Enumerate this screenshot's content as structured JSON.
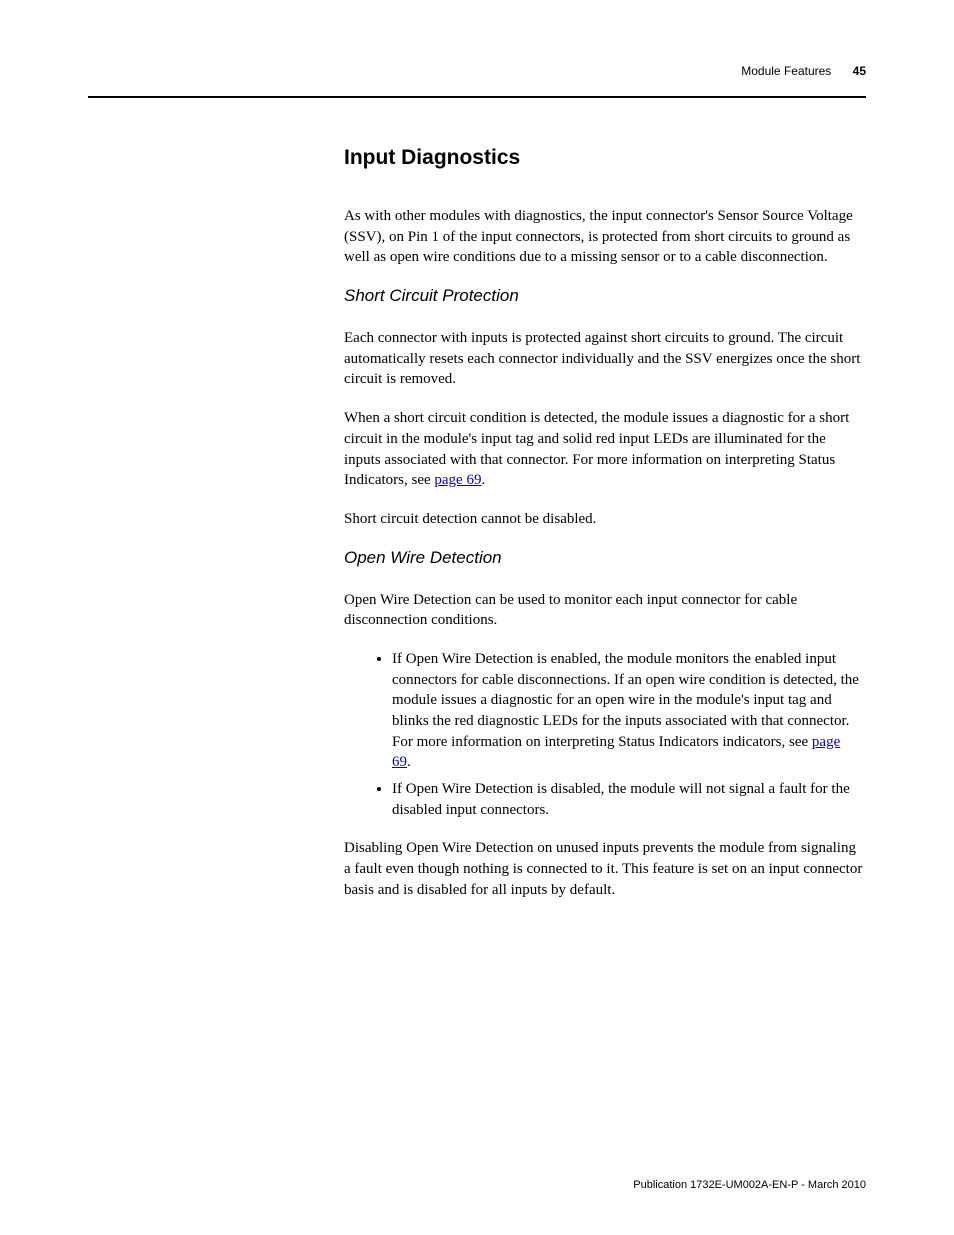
{
  "header": {
    "chapter": "Module Features",
    "page_number": "45"
  },
  "section_title": "Input Diagnostics",
  "intro": "As with other modules with diagnostics, the input connector's Sensor Source Voltage (SSV), on Pin 1 of the input connectors, is protected from short circuits to ground as well as open wire conditions due to a missing sensor or to a cable disconnection.",
  "short_circuit": {
    "heading": "Short Circuit Protection",
    "p1": "Each connector with inputs is protected against short circuits to ground. The circuit automatically resets each connector individually and the SSV energizes once the short circuit is removed.",
    "p2_pre": "When a short circuit condition is detected, the module issues a diagnostic for a short circuit in the module's input tag and solid red input LEDs are illuminated for the inputs associated with that connector. For more information on interpreting Status Indicators, see ",
    "p2_link": "page 69",
    "p2_post": ".",
    "p3": "Short circuit detection cannot be disabled."
  },
  "open_wire": {
    "heading": "Open Wire Detection",
    "p1": "Open Wire Detection can be used to monitor each input connector for cable disconnection conditions.",
    "bullet1_pre": "If Open Wire Detection is enabled, the module monitors the enabled input connectors for cable disconnections. If an open wire condition is detected, the module issues a diagnostic for an open wire in the module's input tag and blinks the red diagnostic LEDs for the inputs associated with that connector. For more information on interpreting Status Indicators indicators, see ",
    "bullet1_link": "page 69",
    "bullet1_post": ".",
    "bullet2": "If Open Wire Detection is disabled, the module will not signal a fault for the disabled input connectors.",
    "p2": "Disabling Open Wire Detection on unused inputs prevents the module from signaling a fault even though nothing is connected to it. This feature is set on an input connector basis and is disabled for all inputs by default."
  },
  "footer": "Publication 1732E-UM002A-EN-P - March 2010"
}
